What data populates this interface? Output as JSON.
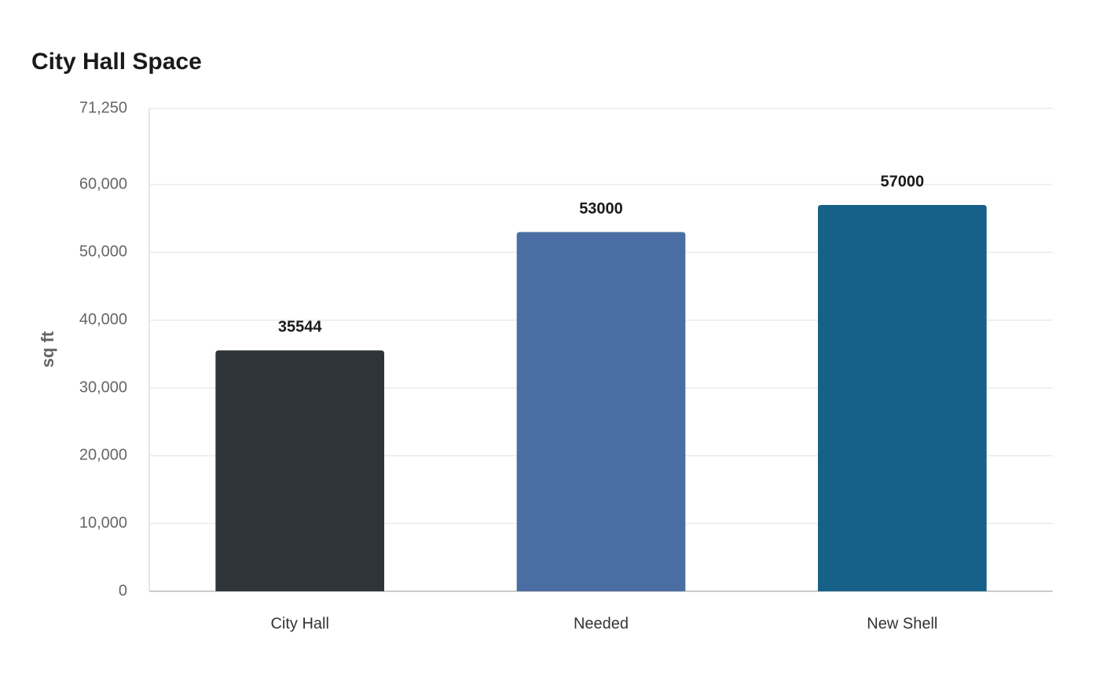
{
  "chart_data": {
    "type": "bar",
    "title": "City Hall Space",
    "y_label": "sq ft",
    "categories": [
      "City Hall",
      "Needed",
      "New Shell"
    ],
    "values": [
      35544,
      53000,
      57000
    ],
    "colors": [
      "#2e3538",
      "#4a6ea3",
      "#176188"
    ],
    "ylim": [
      0,
      71250
    ],
    "yticks": [
      0,
      {
        "value": 10000,
        "label": "10,000"
      },
      {
        "value": 20000,
        "label": "20,000"
      },
      {
        "value": 30000,
        "label": "30,000"
      },
      {
        "value": 40000,
        "label": "40,000"
      },
      {
        "value": 50000,
        "label": "50,000"
      },
      {
        "value": 60000,
        "label": "60,000"
      },
      {
        "value": 71250,
        "label": "71,250"
      }
    ],
    "grid": true
  }
}
